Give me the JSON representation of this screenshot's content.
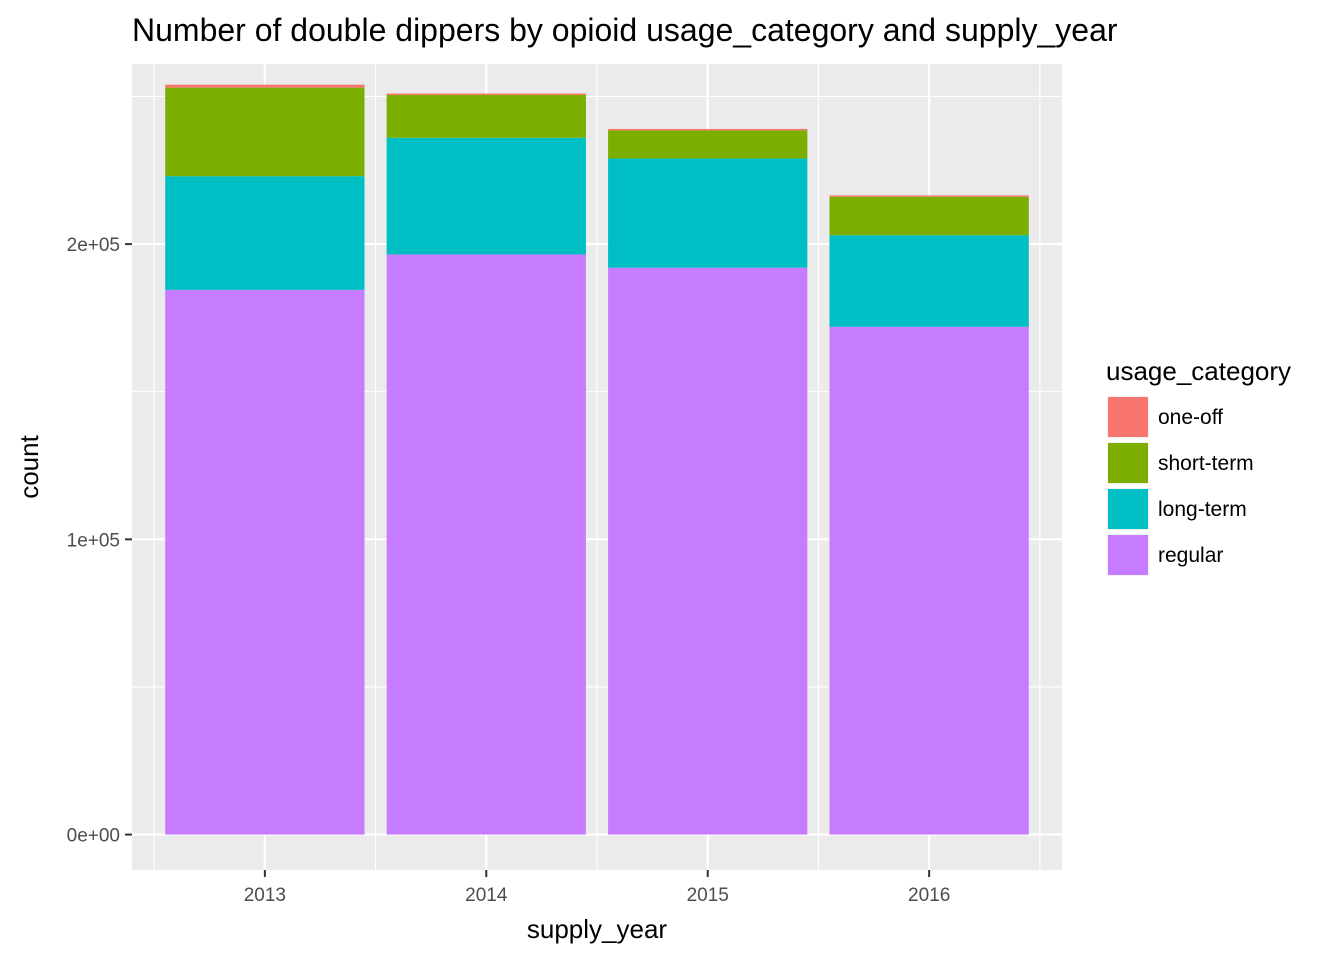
{
  "chart_data": {
    "type": "bar",
    "stacked": true,
    "title": "Number of double dippers by opioid usage_category and supply_year",
    "xlabel": "supply_year",
    "ylabel": "count",
    "categories": [
      "2013",
      "2014",
      "2015",
      "2016"
    ],
    "series": [
      {
        "name": "regular",
        "color": "#C77CFF",
        "values": [
          184500,
          196500,
          192000,
          172000
        ]
      },
      {
        "name": "long-term",
        "color": "#00BFC4",
        "values": [
          38500,
          39500,
          37000,
          31000
        ]
      },
      {
        "name": "short-term",
        "color": "#7CAE00",
        "values": [
          30000,
          14500,
          9500,
          13000
        ]
      },
      {
        "name": "one-off",
        "color": "#F8766D",
        "values": [
          1000,
          500,
          500,
          500
        ]
      }
    ],
    "ylim": [
      -12000,
      261000
    ],
    "yticks": [
      {
        "value": 0,
        "label": "0e+00"
      },
      {
        "value": 100000,
        "label": "1e+05"
      },
      {
        "value": 200000,
        "label": "2e+05"
      }
    ],
    "legend": {
      "title": "usage_category",
      "position": "right",
      "items": [
        {
          "name": "one-off",
          "color": "#F8766D"
        },
        {
          "name": "short-term",
          "color": "#7CAE00"
        },
        {
          "name": "long-term",
          "color": "#00BFC4"
        },
        {
          "name": "regular",
          "color": "#C77CFF"
        }
      ]
    },
    "grid": true,
    "panel_background": "#EBEBEB"
  }
}
